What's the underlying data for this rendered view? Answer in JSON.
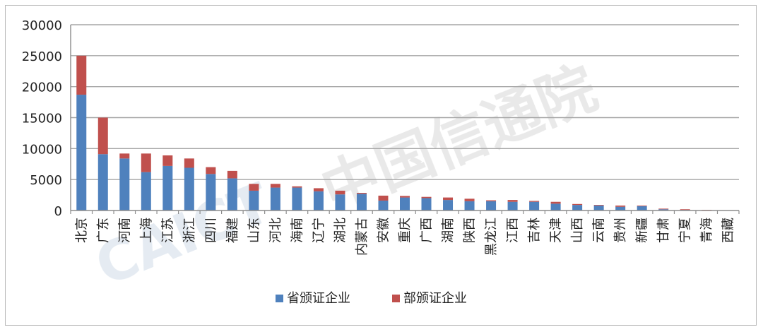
{
  "chart_data": {
    "type": "bar",
    "stacked": true,
    "categories": [
      "北京",
      "广东",
      "河南",
      "上海",
      "江苏",
      "浙江",
      "四川",
      "福建",
      "山东",
      "河北",
      "海南",
      "辽宁",
      "湖北",
      "内蒙古",
      "安徽",
      "重庆",
      "广西",
      "湖南",
      "陕西",
      "黑龙江",
      "江西",
      "吉林",
      "天津",
      "山西",
      "云南",
      "贵州",
      "新疆",
      "甘肃",
      "宁夏",
      "青海",
      "西藏"
    ],
    "series": [
      {
        "name": "省颁证企业",
        "color": "#4f81bd",
        "values": [
          18700,
          9100,
          8400,
          6200,
          7200,
          6900,
          5900,
          5200,
          3200,
          3700,
          3700,
          3100,
          2600,
          2700,
          1600,
          2100,
          2000,
          1700,
          1500,
          1500,
          1400,
          1400,
          1100,
          900,
          800,
          600,
          700,
          200,
          100,
          50,
          30
        ]
      },
      {
        "name": "部颁证企业",
        "color": "#c0504d",
        "values": [
          6300,
          5900,
          800,
          3000,
          1700,
          1500,
          1100,
          1200,
          1100,
          600,
          200,
          500,
          600,
          150,
          800,
          250,
          200,
          400,
          400,
          150,
          300,
          150,
          300,
          150,
          100,
          200,
          100,
          100,
          100,
          50,
          20
        ]
      }
    ],
    "yticks": [
      0,
      5000,
      10000,
      15000,
      20000,
      25000,
      30000
    ],
    "ylim": [
      0,
      30000
    ],
    "grid": true,
    "legend_position": "bottom"
  },
  "watermark": {
    "text_cn": "中国信通院",
    "text_en": "CAICT"
  }
}
